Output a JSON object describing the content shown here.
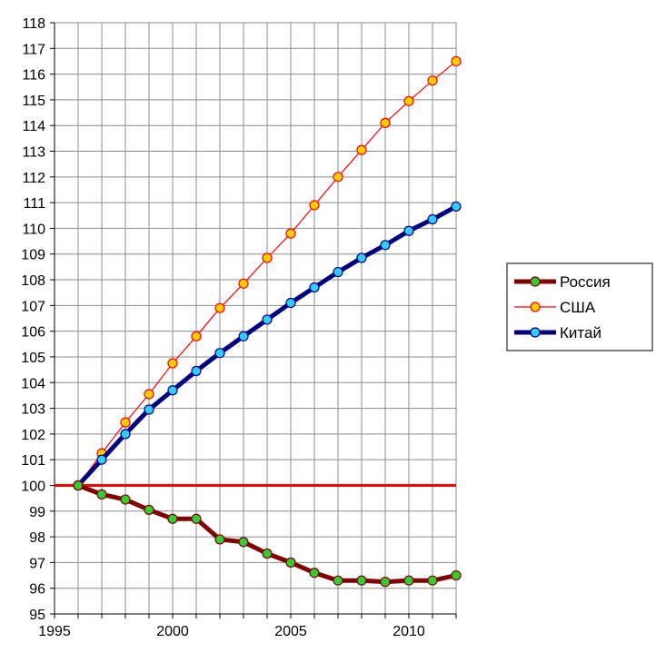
{
  "chart_data": {
    "type": "line",
    "title": "",
    "xlabel": "",
    "ylabel": "",
    "xlim": [
      1995,
      2012
    ],
    "ylim": [
      95,
      118
    ],
    "x_ticks": [
      1995,
      2000,
      2005,
      2010
    ],
    "y_ticks": [
      95,
      96,
      97,
      98,
      99,
      100,
      101,
      102,
      103,
      104,
      105,
      106,
      107,
      108,
      109,
      110,
      111,
      112,
      113,
      114,
      115,
      116,
      117,
      118
    ],
    "grid": true,
    "legend_position": "right",
    "reference_line": {
      "y": 100,
      "color": "#ff0000"
    },
    "x": [
      1996,
      1997,
      1998,
      1999,
      2000,
      2001,
      2002,
      2003,
      2004,
      2005,
      2006,
      2007,
      2008,
      2009,
      2010,
      2011,
      2012
    ],
    "series": [
      {
        "name": "Россия",
        "line_color": "#800000",
        "marker_color": "#33cc33",
        "line_width": "thick",
        "values": [
          100.0,
          99.65,
          99.45,
          99.05,
          98.7,
          98.7,
          97.9,
          97.8,
          97.35,
          97.0,
          96.6,
          96.3,
          96.3,
          96.25,
          96.3,
          96.3,
          96.5
        ]
      },
      {
        "name": "США",
        "line_color": "#ff0000",
        "marker_color": "#ffcc00",
        "line_width": "thin",
        "values": [
          100.0,
          101.25,
          102.45,
          103.55,
          104.75,
          105.8,
          106.9,
          107.85,
          108.85,
          109.8,
          110.9,
          112.0,
          113.05,
          114.1,
          114.95,
          115.75,
          116.5
        ]
      },
      {
        "name": "Китай",
        "line_color": "#000080",
        "marker_color": "#33ccff",
        "line_width": "thick",
        "values": [
          100.0,
          101.0,
          102.0,
          102.95,
          103.7,
          104.45,
          105.15,
          105.8,
          106.45,
          107.1,
          107.7,
          108.3,
          108.85,
          109.35,
          109.9,
          110.35,
          110.85
        ]
      }
    ]
  }
}
